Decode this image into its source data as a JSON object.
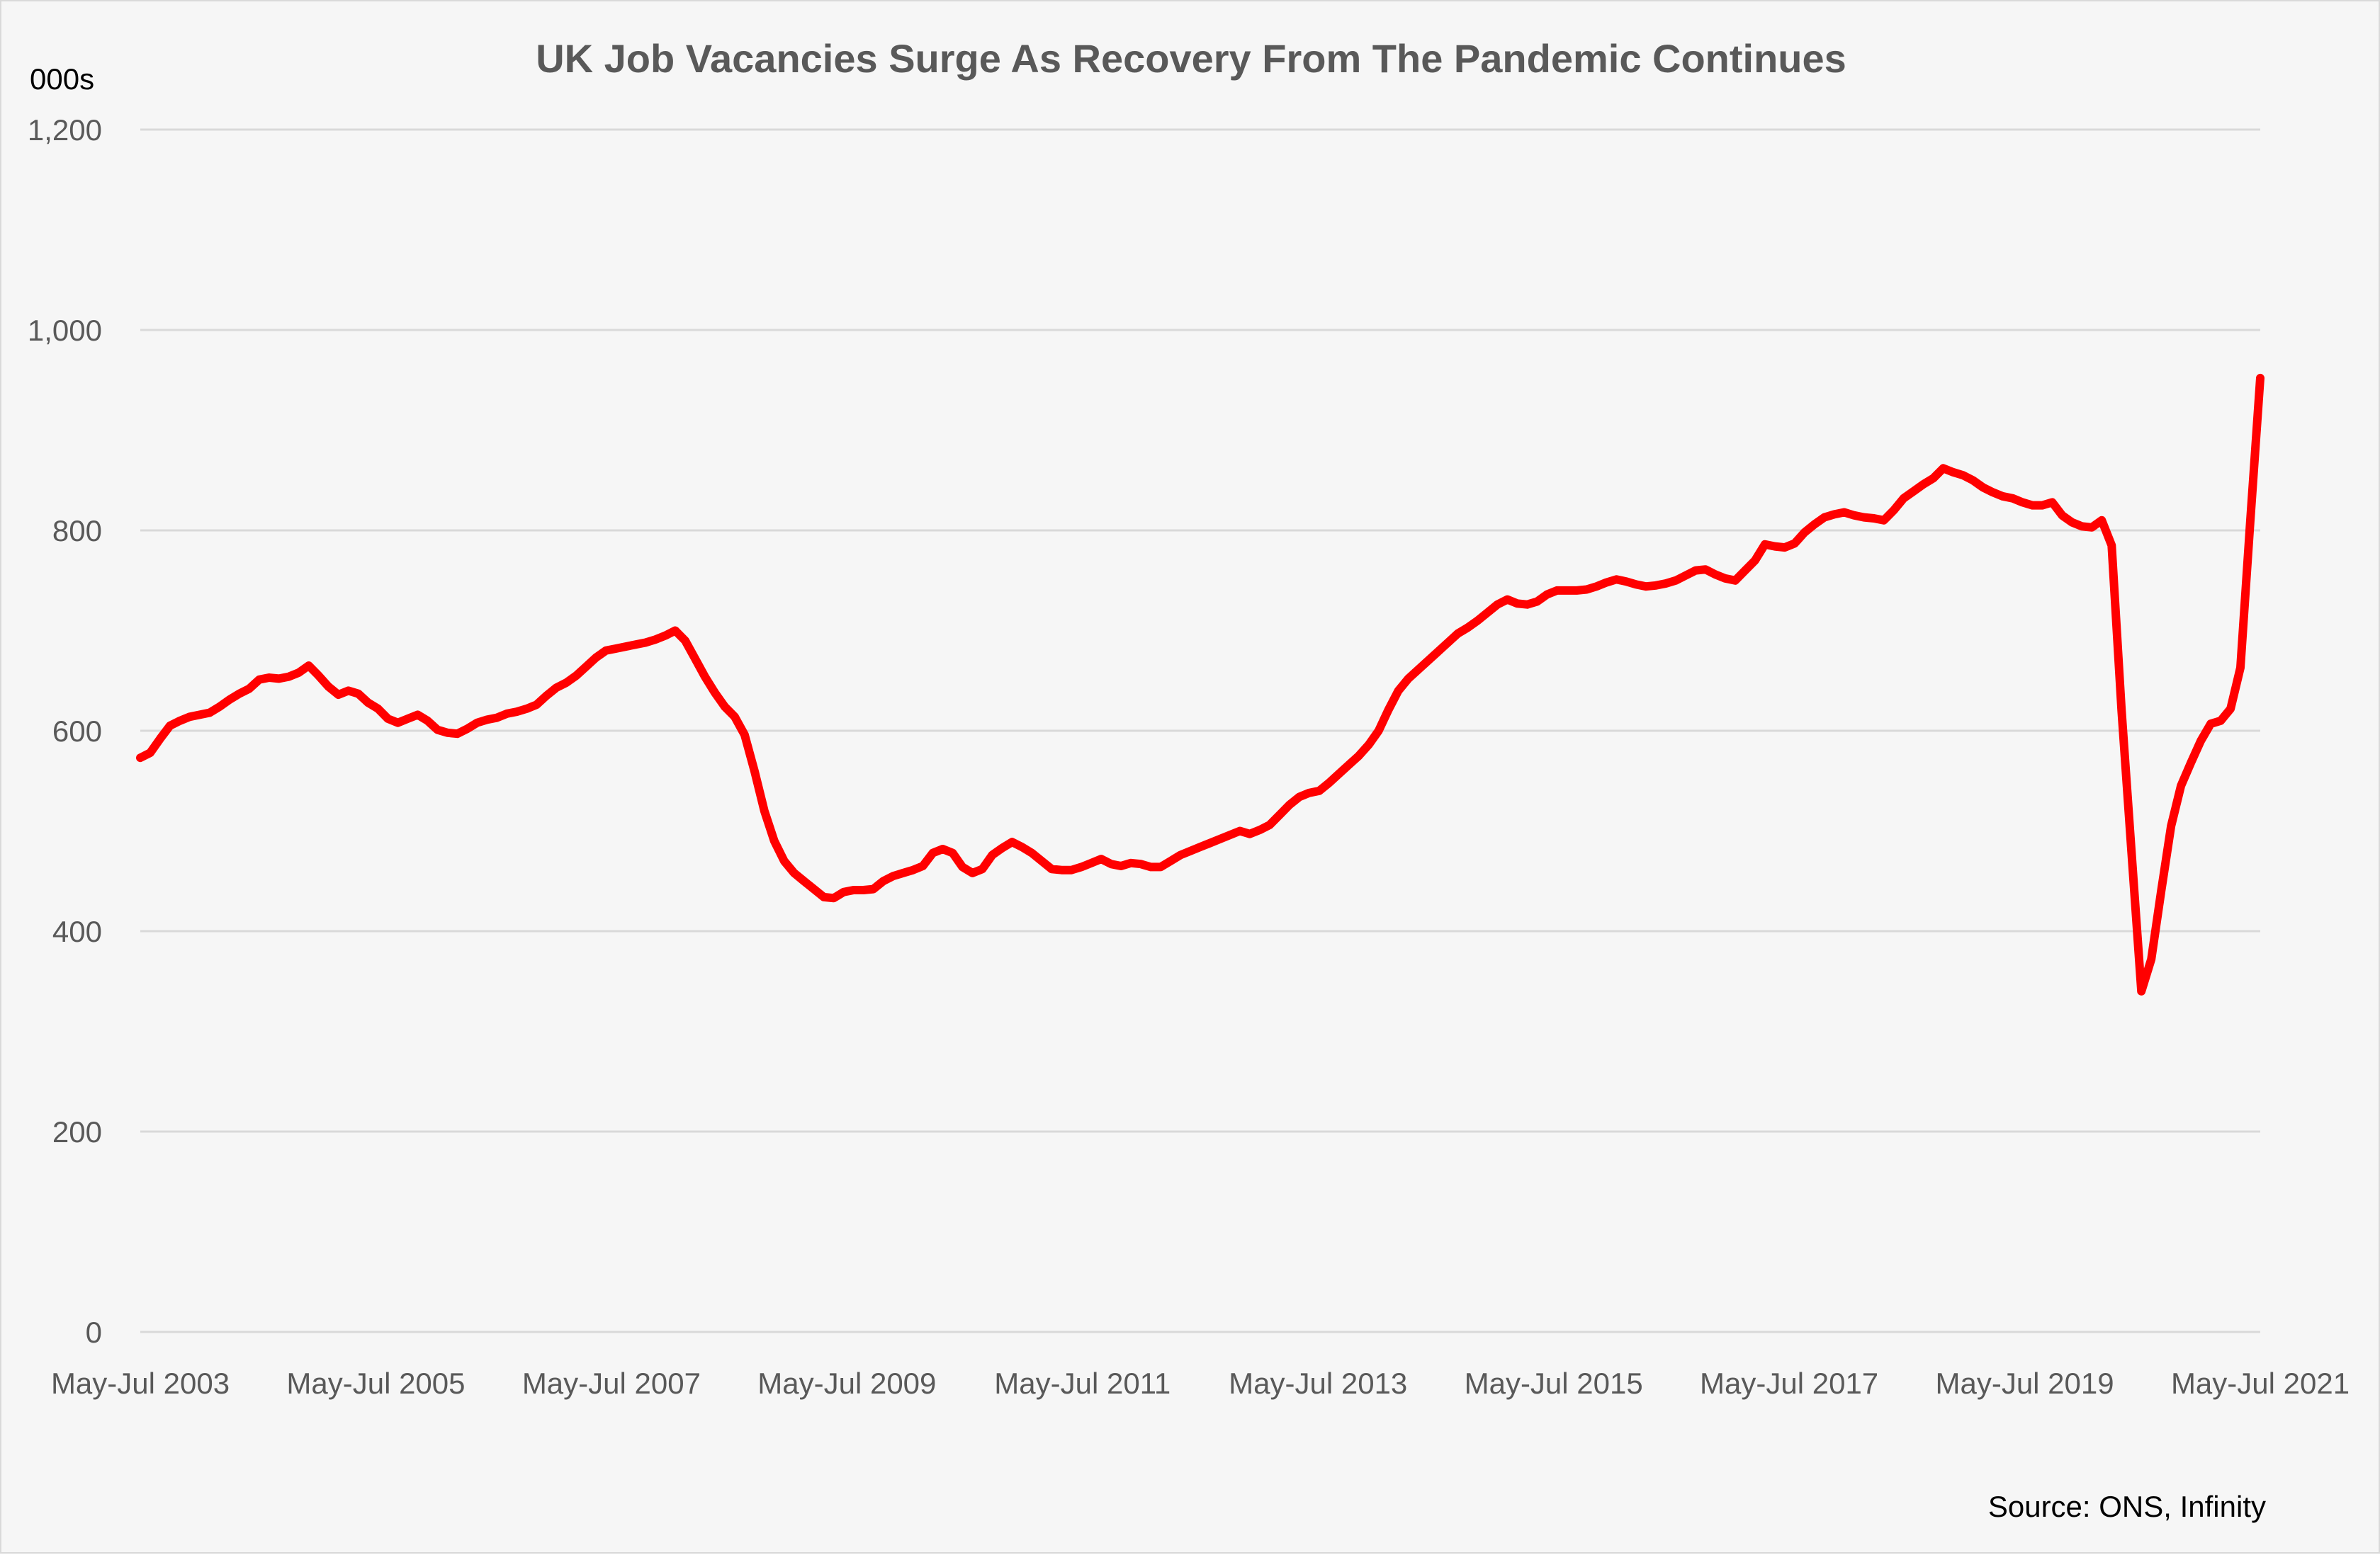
{
  "chart_data": {
    "type": "line",
    "title": "UK Job Vacancies Surge As Recovery From The Pandemic Continues",
    "unit_label": "000s",
    "source": "Source: ONS, Infinity",
    "ylim": [
      0,
      1200
    ],
    "yticks": [
      0,
      200,
      400,
      600,
      800,
      1000,
      1200
    ],
    "ytick_labels": [
      "0",
      "200",
      "400",
      "600",
      "800",
      "1,000",
      "1,200"
    ],
    "xtick_labels": [
      "May-Jul 2003",
      "May-Jul 2005",
      "May-Jul 2007",
      "May-Jul 2009",
      "May-Jul 2011",
      "May-Jul 2013",
      "May-Jul 2015",
      "May-Jul 2017",
      "May-Jul 2019",
      "May-Jul 2021"
    ],
    "x_start": "May-Jul 2003",
    "x_end": "May-Jul 2021",
    "grid": true,
    "legend": "none",
    "line_color": "#ff0000",
    "series": [
      {
        "values": [
          573,
          578,
          592,
          605,
          610,
          614,
          616,
          618,
          624,
          631,
          637,
          642,
          651,
          653,
          652,
          654,
          658,
          665,
          655,
          644,
          636,
          640,
          637,
          628,
          622,
          612,
          608,
          612,
          616,
          610,
          601,
          598,
          597,
          602,
          608,
          611,
          613,
          617,
          619,
          622,
          626,
          635,
          643,
          648,
          655,
          664,
          673,
          680,
          682,
          684,
          686,
          688,
          691,
          695,
          700,
          690,
          672,
          654,
          638,
          624,
          614,
          596,
          560,
          520,
          490,
          470,
          458,
          450,
          442,
          434,
          433,
          439,
          441,
          441,
          442,
          450,
          455,
          458,
          461,
          465,
          478,
          482,
          478,
          464,
          458,
          462,
          476,
          483,
          489,
          484,
          478,
          470,
          462,
          461,
          461,
          464,
          468,
          472,
          467,
          465,
          468,
          467,
          464,
          464,
          470,
          476,
          480,
          484,
          488,
          492,
          496,
          500,
          497,
          501,
          506,
          516,
          526,
          534,
          538,
          540,
          548,
          557,
          566,
          575,
          586,
          600,
          621,
          640,
          652,
          661,
          670,
          679,
          688,
          697,
          703,
          710,
          718,
          726,
          731,
          727,
          726,
          729,
          736,
          740,
          740,
          740,
          741,
          744,
          748,
          751,
          749,
          746,
          744,
          745,
          747,
          750,
          755,
          760,
          761,
          756,
          752,
          750,
          760,
          770,
          786,
          784,
          783,
          787,
          798,
          806,
          813,
          816,
          818,
          815,
          813,
          812,
          810,
          820,
          832,
          839,
          846,
          852,
          862,
          858,
          855,
          850,
          843,
          838,
          834,
          832,
          828,
          825,
          825,
          828,
          815,
          808,
          804,
          803,
          810,
          785,
          620,
          480,
          340,
          372,
          440,
          505,
          545,
          568,
          590,
          607,
          610,
          622,
          663,
          810,
          952
        ]
      }
    ]
  }
}
